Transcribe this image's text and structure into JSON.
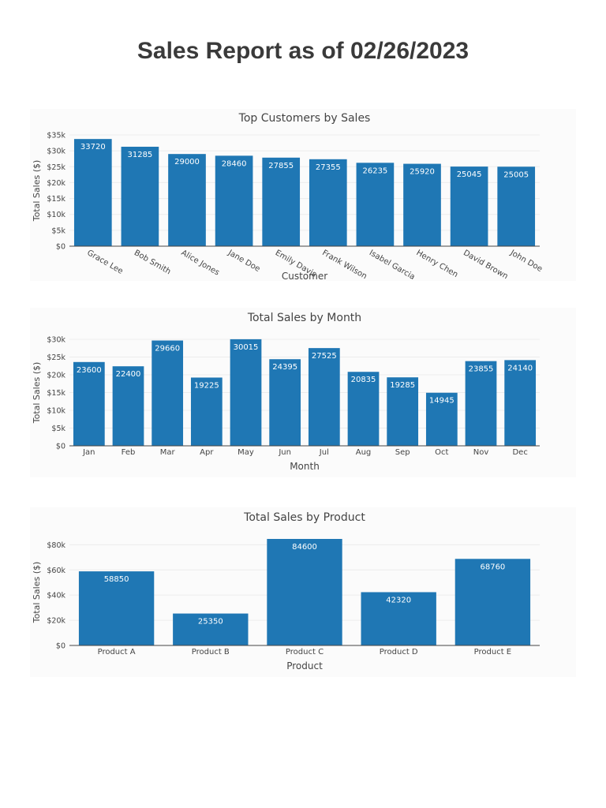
{
  "report": {
    "title": "Sales Report as of 02/26/2023"
  },
  "colors": {
    "bar": "#1f77b4",
    "axis_text": "#444444",
    "grid": "#ececec",
    "bar_label": "#ffffff"
  },
  "chart_data": [
    {
      "id": "customers",
      "type": "bar",
      "title": "Top Customers by Sales",
      "xlabel": "Customer",
      "ylabel": "Total Sales ($)",
      "categories": [
        "Grace Lee",
        "Bob Smith",
        "Alice Jones",
        "Jane Doe",
        "Emily Davis",
        "Frank Wilson",
        "Isabel Garcia",
        "Henry Chen",
        "David Brown",
        "John Doe"
      ],
      "values": [
        33720,
        31285,
        29000,
        28460,
        27855,
        27355,
        26235,
        25920,
        25045,
        25005
      ],
      "ylim": [
        0,
        35000
      ],
      "yticks": [
        0,
        5000,
        10000,
        15000,
        20000,
        25000,
        30000,
        35000
      ],
      "ytick_labels": [
        "$0",
        "$5k",
        "$10k",
        "$15k",
        "$20k",
        "$25k",
        "$30k",
        "$35k"
      ],
      "grid": true,
      "rotate_xticks": true
    },
    {
      "id": "month",
      "type": "bar",
      "title": "Total Sales by Month",
      "xlabel": "Month",
      "ylabel": "Total Sales ($)",
      "categories": [
        "Jan",
        "Feb",
        "Mar",
        "Apr",
        "May",
        "Jun",
        "Jul",
        "Aug",
        "Sep",
        "Oct",
        "Nov",
        "Dec"
      ],
      "values": [
        23600,
        22400,
        29660,
        19225,
        30015,
        24395,
        27525,
        20835,
        19285,
        14945,
        23855,
        24140
      ],
      "ylim": [
        0,
        30000
      ],
      "yticks": [
        0,
        5000,
        10000,
        15000,
        20000,
        25000,
        30000
      ],
      "ytick_labels": [
        "$0",
        "$5k",
        "$10k",
        "$15k",
        "$20k",
        "$25k",
        "$30k"
      ],
      "grid": true,
      "rotate_xticks": false
    },
    {
      "id": "product",
      "type": "bar",
      "title": "Total Sales by Product",
      "xlabel": "Product",
      "ylabel": "Total Sales ($)",
      "categories": [
        "Product A",
        "Product B",
        "Product C",
        "Product D",
        "Product E"
      ],
      "values": [
        58850,
        25350,
        84600,
        42320,
        68760
      ],
      "ylim": [
        0,
        84600
      ],
      "yticks": [
        0,
        20000,
        40000,
        60000,
        80000
      ],
      "ytick_labels": [
        "$0",
        "$20k",
        "$40k",
        "$60k",
        "$80k"
      ],
      "grid": true,
      "rotate_xticks": false
    }
  ]
}
